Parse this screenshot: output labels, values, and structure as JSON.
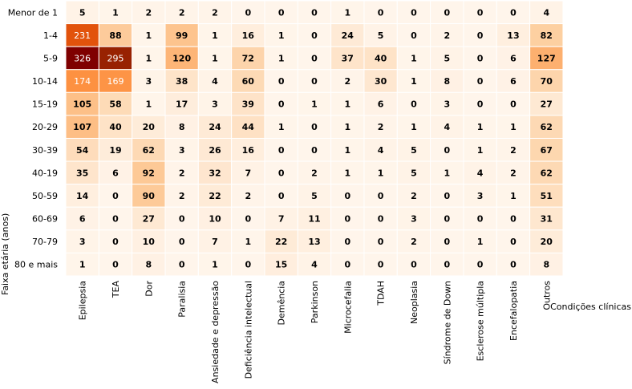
{
  "chart_data": {
    "type": "heatmap",
    "title": "",
    "xlabel": "Condições clínicas",
    "ylabel": "Faixa etária (anos)",
    "x_categories": [
      "Epilepsia",
      "TEA",
      "Dor",
      "Paralisia",
      "Ansiedade e depressão",
      "Deficiência intelectual",
      "Demência",
      "Parkinson",
      "Microcefalia",
      "TDAH",
      "Neoplasia",
      "Síndrome de Down",
      "Esclerose múltipla",
      "Encefalopatia",
      "Outros"
    ],
    "y_categories": [
      "Menor de 1",
      "1-4",
      "5-9",
      "10-14",
      "15-19",
      "20-29",
      "30-39",
      "40-19",
      "50-59",
      "60-69",
      "70-79",
      "80 e mais"
    ],
    "values": [
      [
        5,
        1,
        2,
        2,
        2,
        0,
        0,
        0,
        1,
        0,
        0,
        0,
        0,
        0,
        4
      ],
      [
        231,
        88,
        1,
        99,
        1,
        16,
        1,
        0,
        24,
        5,
        0,
        2,
        0,
        13,
        82
      ],
      [
        326,
        295,
        1,
        120,
        1,
        72,
        1,
        0,
        37,
        40,
        1,
        5,
        0,
        6,
        127
      ],
      [
        174,
        169,
        3,
        38,
        4,
        60,
        0,
        0,
        2,
        30,
        1,
        8,
        0,
        6,
        70
      ],
      [
        105,
        58,
        1,
        17,
        3,
        39,
        0,
        1,
        1,
        6,
        0,
        3,
        0,
        0,
        27
      ],
      [
        107,
        40,
        20,
        8,
        24,
        44,
        1,
        0,
        1,
        2,
        1,
        4,
        1,
        1,
        62
      ],
      [
        54,
        19,
        62,
        3,
        26,
        16,
        0,
        0,
        1,
        4,
        5,
        0,
        1,
        2,
        67
      ],
      [
        35,
        6,
        92,
        2,
        32,
        7,
        0,
        2,
        1,
        1,
        5,
        1,
        4,
        2,
        62
      ],
      [
        14,
        0,
        90,
        2,
        22,
        2,
        0,
        5,
        0,
        0,
        2,
        0,
        3,
        1,
        51
      ],
      [
        6,
        0,
        27,
        0,
        10,
        0,
        7,
        11,
        0,
        0,
        3,
        0,
        0,
        0,
        31
      ],
      [
        3,
        0,
        10,
        0,
        7,
        1,
        22,
        13,
        0,
        0,
        2,
        0,
        1,
        0,
        20
      ],
      [
        1,
        0,
        8,
        0,
        1,
        0,
        15,
        4,
        0,
        0,
        0,
        0,
        0,
        0,
        8
      ]
    ],
    "color_scale": {
      "low": "#fff5eb",
      "mid": "#fd8d3c",
      "high": "#7f0000"
    },
    "value_range": [
      0,
      326
    ],
    "grid": true,
    "legend": "none"
  }
}
